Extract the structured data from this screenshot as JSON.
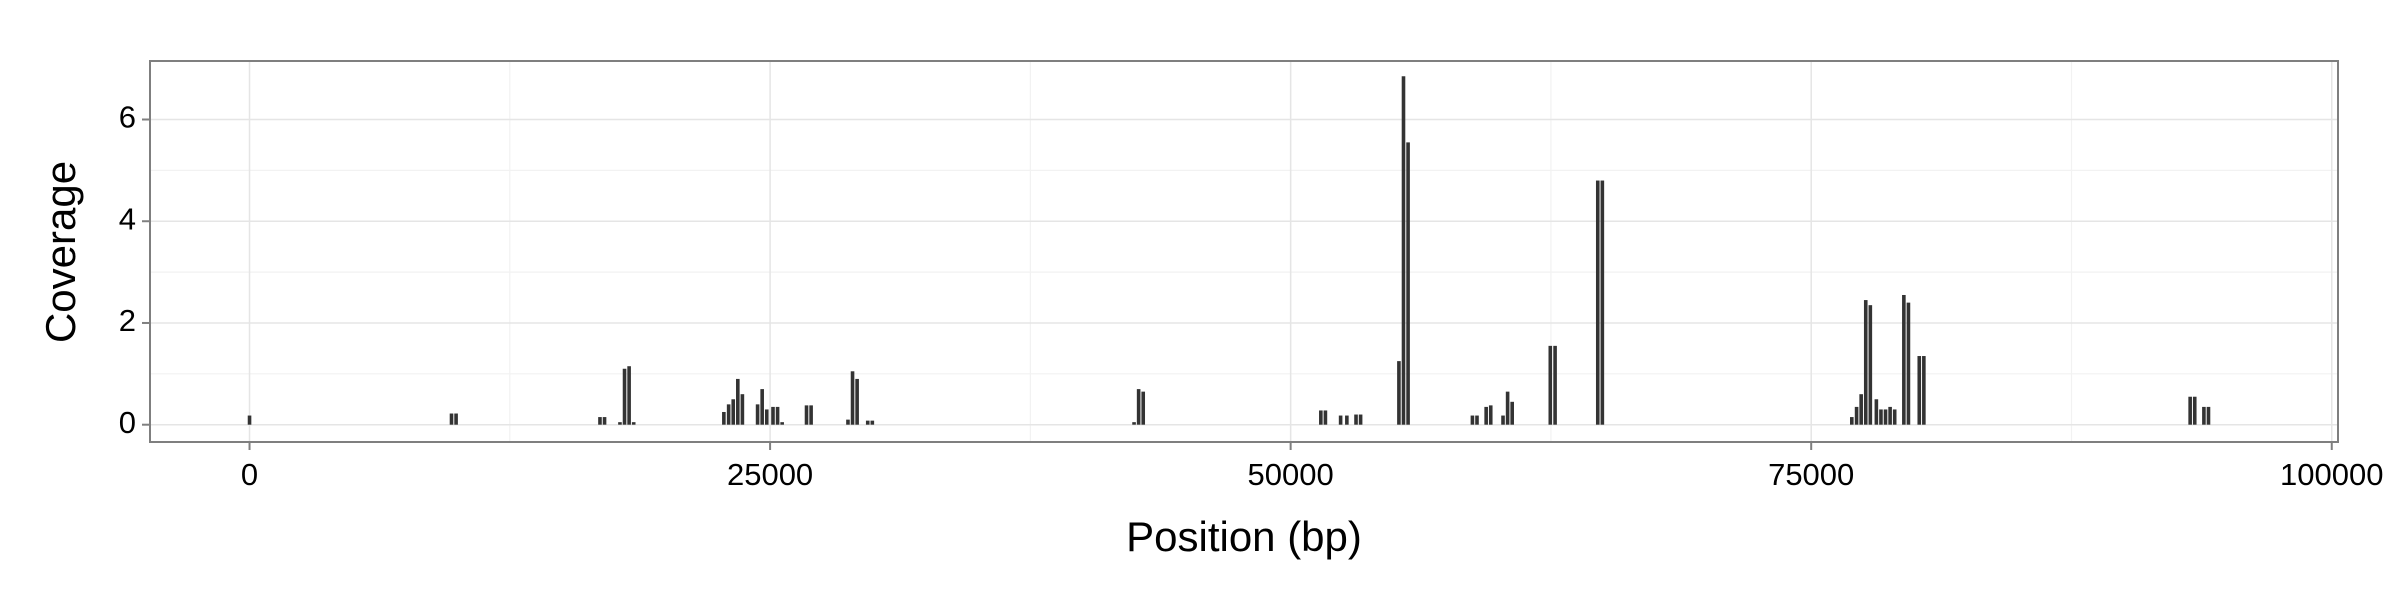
{
  "chart_data": {
    "type": "bar",
    "xlabel": "Position (bp)",
    "ylabel": "Coverage",
    "x": [
      0,
      9700,
      9920,
      16830,
      17050,
      17790,
      18010,
      18230,
      18450,
      22780,
      23010,
      23230,
      23450,
      23670,
      24400,
      24620,
      24840,
      25140,
      25360,
      25580,
      26750,
      26970,
      28740,
      28960,
      29180,
      29690,
      29910,
      42480,
      42700,
      42920,
      51450,
      51670,
      52400,
      52700,
      53140,
      53360,
      55200,
      55420,
      55640,
      58730,
      58950,
      59390,
      59610,
      60200,
      60420,
      60640,
      62470,
      62700,
      64750,
      64970,
      76950,
      77180,
      77400,
      77620,
      77840,
      78130,
      78350,
      78570,
      78790,
      79010,
      79450,
      79670,
      80190,
      80410,
      93200,
      93420,
      93860,
      94080
    ],
    "values": [
      0.18,
      0.22,
      0.22,
      0.15,
      0.15,
      0.05,
      1.1,
      1.15,
      0.05,
      0.25,
      0.4,
      0.5,
      0.9,
      0.6,
      0.4,
      0.7,
      0.3,
      0.35,
      0.35,
      0.05,
      0.38,
      0.38,
      0.1,
      1.05,
      0.9,
      0.08,
      0.08,
      0.05,
      0.7,
      0.65,
      0.28,
      0.28,
      0.18,
      0.18,
      0.2,
      0.2,
      1.25,
      6.85,
      5.55,
      0.18,
      0.18,
      0.35,
      0.38,
      0.18,
      0.65,
      0.45,
      1.55,
      1.55,
      4.8,
      4.8,
      0.15,
      0.35,
      0.6,
      2.45,
      2.35,
      0.5,
      0.3,
      0.3,
      0.35,
      0.3,
      2.55,
      2.4,
      1.35,
      1.35,
      0.55,
      0.55,
      0.35,
      0.35
    ],
    "color": "#333333",
    "xlim": [
      -4780,
      100300
    ],
    "xticks": [
      0,
      25000,
      50000,
      75000,
      100000
    ],
    "ylim": [
      -0.34,
      7.15
    ],
    "yticks": [
      0,
      2,
      4,
      6
    ],
    "grid": true
  }
}
